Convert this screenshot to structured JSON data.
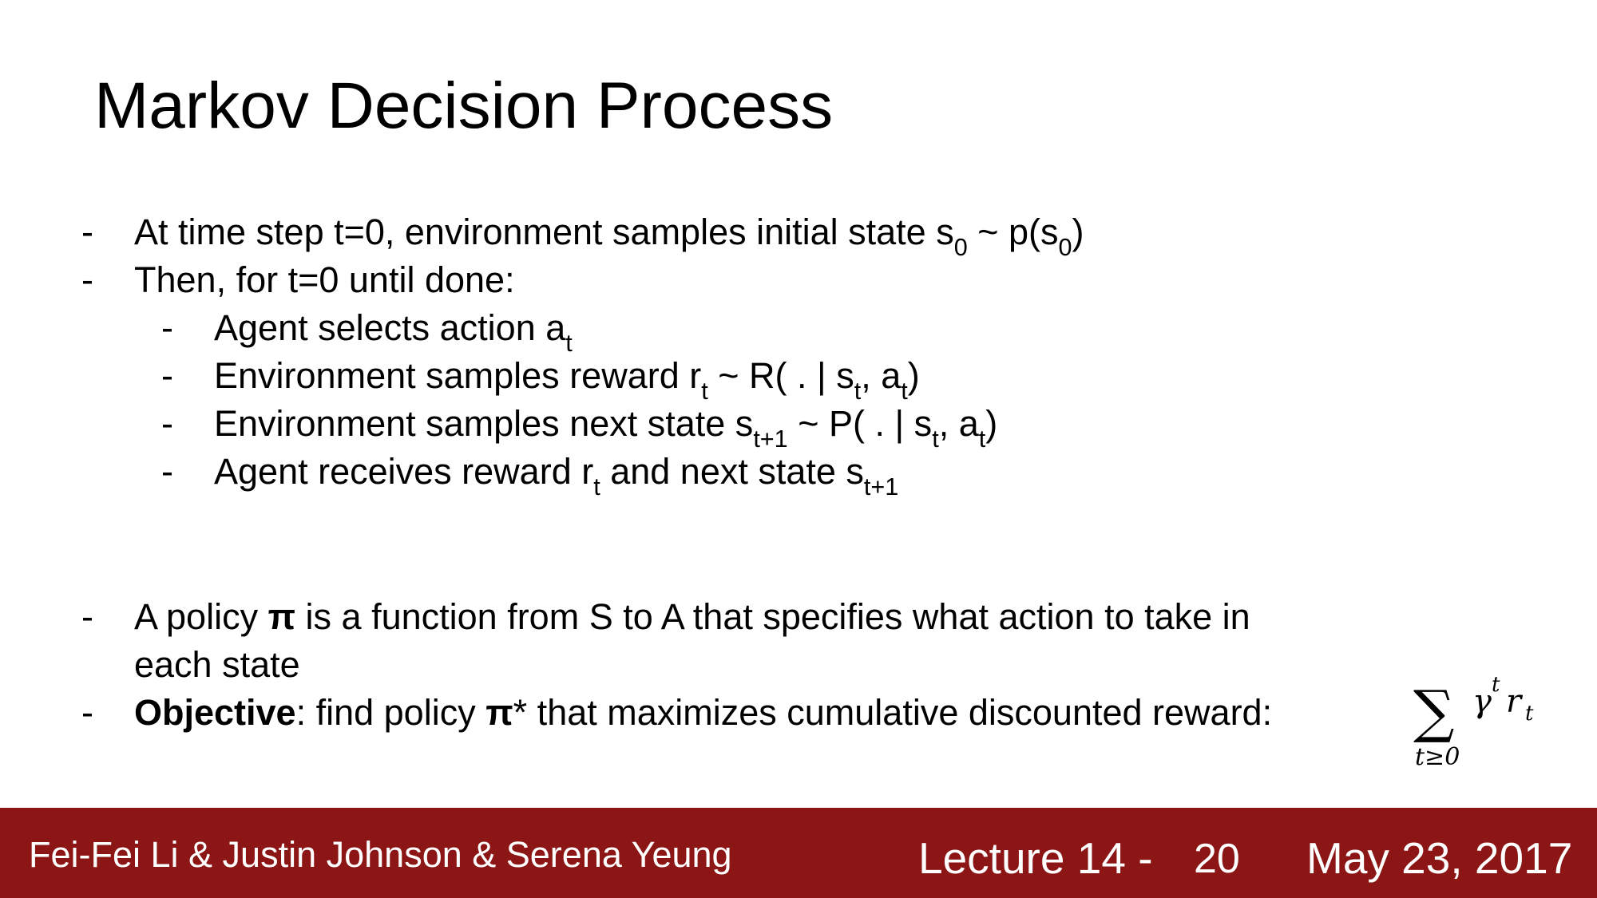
{
  "slide": {
    "title": "Markov Decision Process"
  },
  "bullets": {
    "dash": "-",
    "b1": {
      "text": "At time step t=0, environment samples initial state s",
      "sub1": "0",
      "mid": " ~ p(s",
      "sub2": "0",
      "end": ")"
    },
    "b2": {
      "text": "Then, for t=0 until done:"
    },
    "b3": {
      "text": "Agent selects action a",
      "sub1": "t"
    },
    "b4": {
      "text": "Environment samples reward r",
      "sub1": "t",
      "mid": " ~ R( . | s",
      "sub2": "t",
      "mid2": ", a",
      "sub3": "t",
      "end": ")"
    },
    "b5": {
      "text": "Environment samples next state s",
      "sub1": "t+1",
      "mid": " ~ P( . | s",
      "sub2": "t",
      "mid2": ", a",
      "sub3": "t",
      "end": ")"
    },
    "b6": {
      "text": "Agent receives reward r",
      "sub1": "t",
      "mid": " and next state s",
      "sub2": "t+1"
    },
    "b7": {
      "pre": "A policy ",
      "pi": "π",
      "post": " is a function from S to A that specifies what action to take in",
      "line2": "each state"
    },
    "b8": {
      "bold": "Objective",
      "post": ": find policy ",
      "pi": "π",
      "end": "* that maximizes cumulative discounted reward:"
    }
  },
  "formula": {
    "sigma": "∑",
    "gamma": "γ",
    "gamma_exp": "t",
    "r": "r",
    "r_sub": "t",
    "lower": "t≥0"
  },
  "footer": {
    "authors": "Fei-Fei Li & Justin Johnson & Serena Yeung",
    "lecture": "Lecture 14 -",
    "page": "20",
    "date": "May 23, 2017"
  },
  "colors": {
    "footer_bg": "#8c1515",
    "footer_text": "#ffffff",
    "text": "#000000"
  }
}
